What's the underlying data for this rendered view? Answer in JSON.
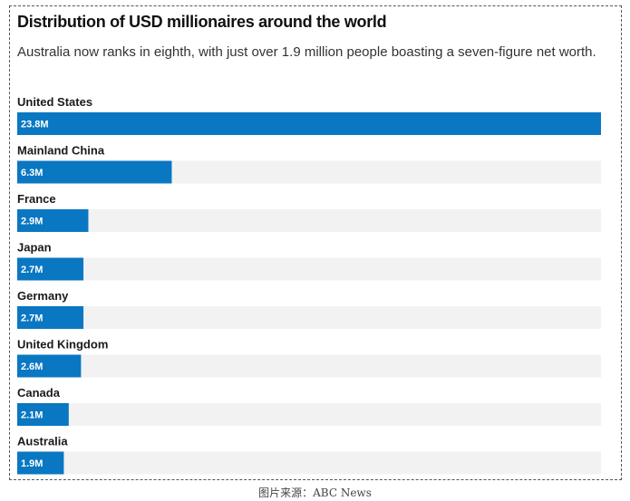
{
  "caption": "图片来源：ABC News",
  "colors": {
    "bar": "#0a77c2",
    "track": "#f2f2f2"
  },
  "chart_data": {
    "type": "bar",
    "orientation": "horizontal",
    "title": "Distribution of USD millionaires around the world",
    "subtitle": "Australia now ranks in eighth, with just over 1.9 million people boasting a seven-figure net worth.",
    "categories": [
      "United States",
      "Mainland China",
      "France",
      "Japan",
      "Germany",
      "United Kingdom",
      "Canada",
      "Australia"
    ],
    "values": [
      23.8,
      6.3,
      2.9,
      2.7,
      2.7,
      2.6,
      2.1,
      1.9
    ],
    "value_labels": [
      "23.8M",
      "6.3M",
      "2.9M",
      "2.7M",
      "2.7M",
      "2.6M",
      "2.1M",
      "1.9M"
    ],
    "unit": "million people",
    "xlim": [
      0,
      23.8
    ],
    "xlabel": "",
    "ylabel": "",
    "grid": false,
    "legend": "none"
  }
}
